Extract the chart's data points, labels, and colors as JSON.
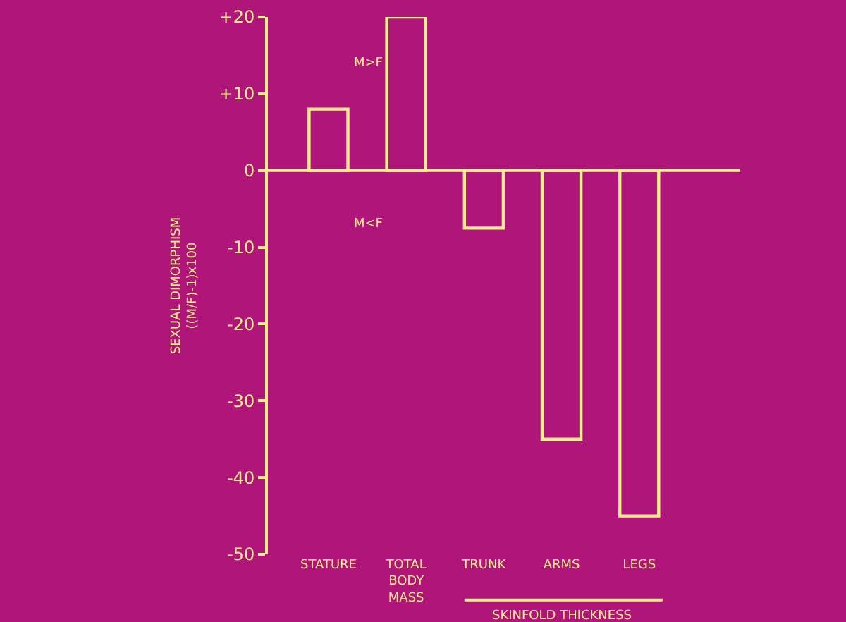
{
  "chart_data": {
    "type": "bar",
    "categories": [
      "STATURE",
      "TOTAL BODY MASS",
      "TRUNK",
      "ARMS",
      "LEGS"
    ],
    "values": [
      8,
      20,
      -7.5,
      -35,
      -45
    ],
    "color": "#f4ef8c",
    "ylabel": "SEXUAL DIMORPHISM\n((M/F)-1)x100",
    "ylim": [
      -50,
      20
    ],
    "yticks": [
      {
        "value": 20,
        "label": "+20"
      },
      {
        "value": 10,
        "label": "+10"
      },
      0,
      -10,
      -20,
      -30,
      -40,
      -50
    ],
    "annotations": [
      "M>F",
      "M<F",
      "SKINFOLD THICKNESS"
    ],
    "ref_lines": [
      {
        "axis": "y",
        "value": 0,
        "color": "#f4ef8c"
      }
    ],
    "grid": false
  }
}
